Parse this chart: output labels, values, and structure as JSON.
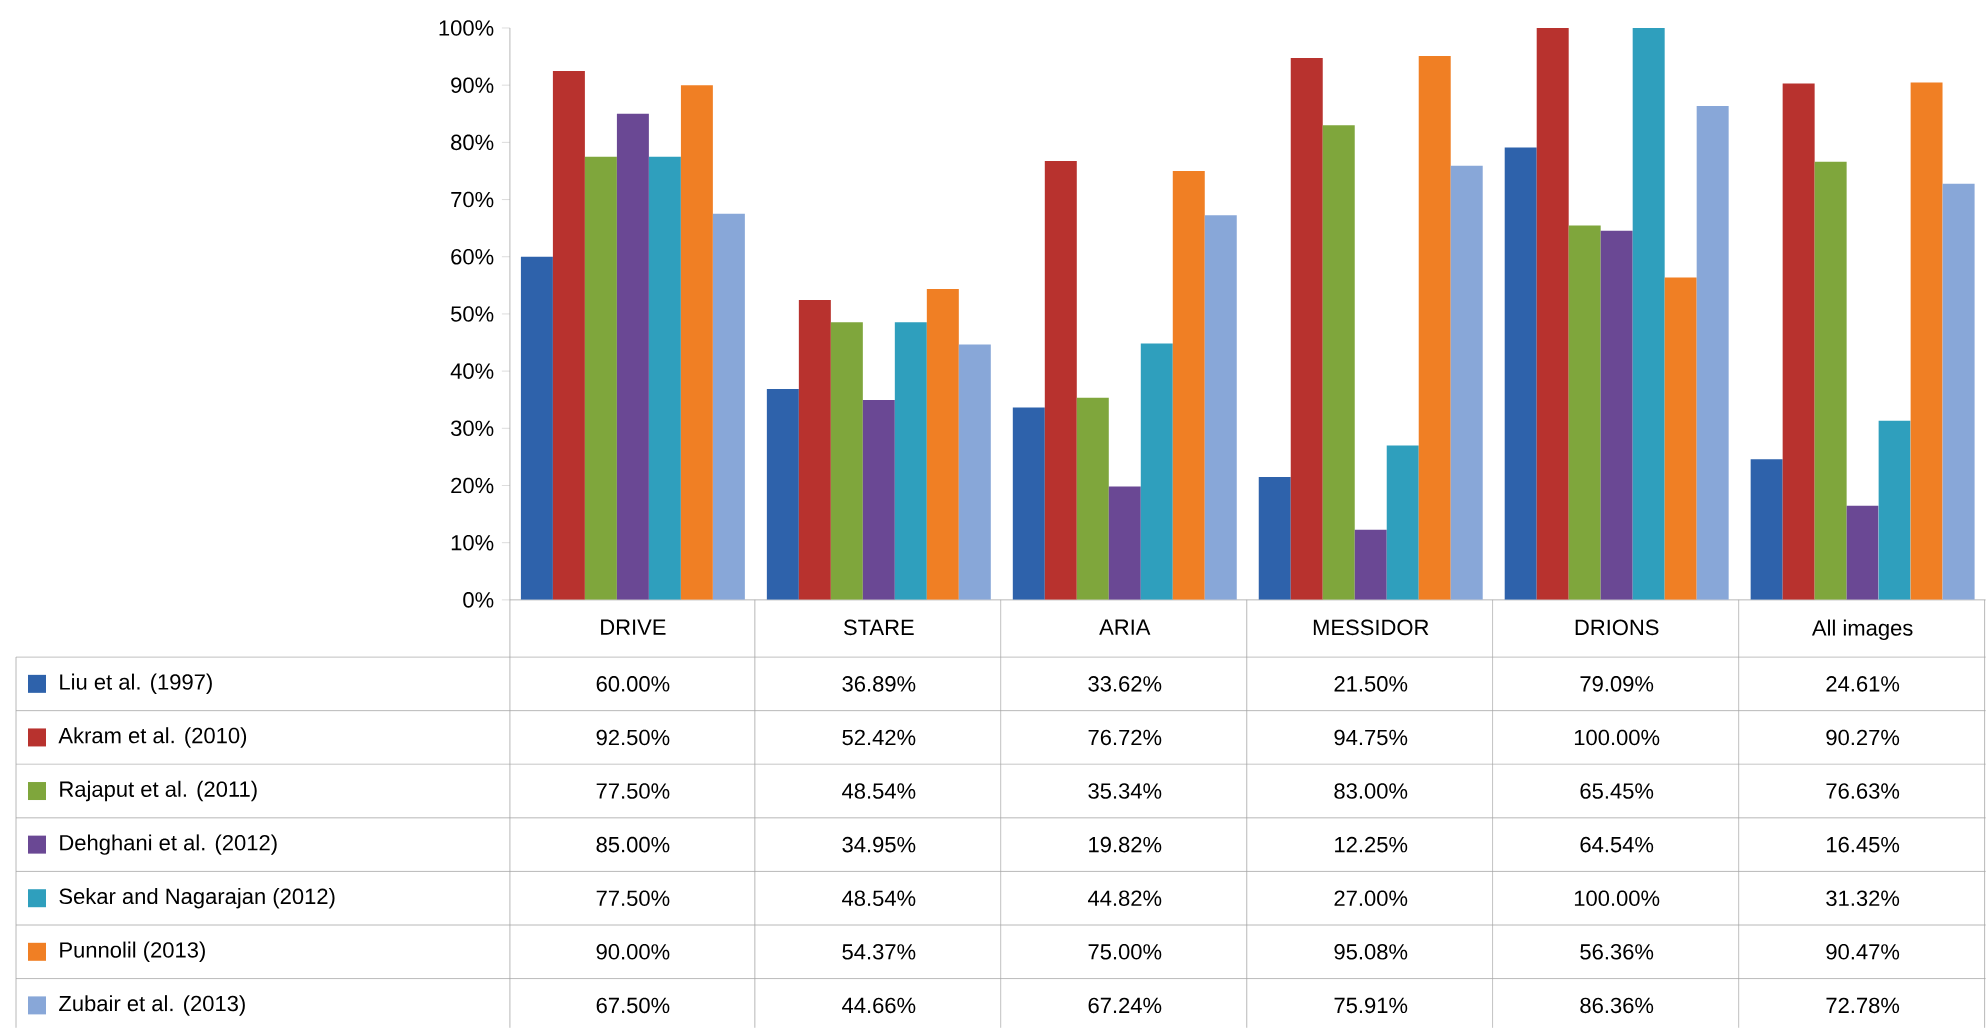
{
  "chart_data": {
    "type": "bar",
    "categories": [
      "DRIVE",
      "STARE",
      "ARIA",
      "MESSIDOR",
      "DRIONS",
      "All images"
    ],
    "ylim": [
      0,
      100
    ],
    "yticks": [
      {
        "value": 0,
        "label": "0%"
      },
      {
        "value": 10,
        "label": "10%"
      },
      {
        "value": 20,
        "label": "20%"
      },
      {
        "value": 30,
        "label": "30%"
      },
      {
        "value": 40,
        "label": "40%"
      },
      {
        "value": 50,
        "label": "50%"
      },
      {
        "value": 60,
        "label": "60%"
      },
      {
        "value": 70,
        "label": "70%"
      },
      {
        "value": 80,
        "label": "80%"
      },
      {
        "value": 90,
        "label": "90%"
      },
      {
        "value": 100,
        "label": "100%"
      }
    ],
    "grid": false,
    "legend": "bottom",
    "series": [
      {
        "name": "Liu et al. (1997)",
        "color": "#2e62ab",
        "values": [
          60.0,
          36.89,
          33.62,
          21.5,
          79.09,
          24.61
        ],
        "value_labels": [
          "60.00%",
          "36.89%",
          "33.62%",
          "21.50%",
          "79.09%",
          "24.61%"
        ]
      },
      {
        "name": "Akram et al. (2010)",
        "color": "#b8322e",
        "values": [
          92.5,
          52.42,
          76.72,
          94.75,
          100.0,
          90.27
        ],
        "value_labels": [
          "92.50%",
          "52.42%",
          "76.72%",
          "94.75%",
          "100.00%",
          "90.27%"
        ]
      },
      {
        "name": "Rajaput et al. (2011)",
        "color": "#7fa63c",
        "values": [
          77.5,
          48.54,
          35.34,
          83.0,
          65.45,
          76.63
        ],
        "value_labels": [
          "77.50%",
          "48.54%",
          "35.34%",
          "83.00%",
          "65.45%",
          "76.63%"
        ]
      },
      {
        "name": "Dehghani et al. (2012)",
        "color": "#6a4894",
        "values": [
          85.0,
          34.95,
          19.82,
          12.25,
          64.54,
          16.45
        ],
        "value_labels": [
          "85.00%",
          "34.95%",
          "19.82%",
          "12.25%",
          "64.54%",
          "16.45%"
        ]
      },
      {
        "name": "Sekar and Nagarajan (2012)",
        "color": "#2f9fbd",
        "values": [
          77.5,
          48.54,
          44.82,
          27.0,
          100.0,
          31.32
        ],
        "value_labels": [
          "77.50%",
          "48.54%",
          "44.82%",
          "27.00%",
          "100.00%",
          "31.32%"
        ]
      },
      {
        "name": "Punnolil (2013)",
        "color": "#f07f24",
        "values": [
          90.0,
          54.37,
          75.0,
          95.08,
          56.36,
          90.47
        ],
        "value_labels": [
          "90.00%",
          "54.37%",
          "75.00%",
          "95.08%",
          "56.36%",
          "90.47%"
        ]
      },
      {
        "name": "Zubair et al. (2013)",
        "color": "#88a7d8",
        "values": [
          67.5,
          44.66,
          67.24,
          75.91,
          86.36,
          72.78
        ],
        "value_labels": [
          "67.50%",
          "44.66%",
          "67.24%",
          "75.91%",
          "86.36%",
          "72.78%"
        ]
      }
    ]
  }
}
